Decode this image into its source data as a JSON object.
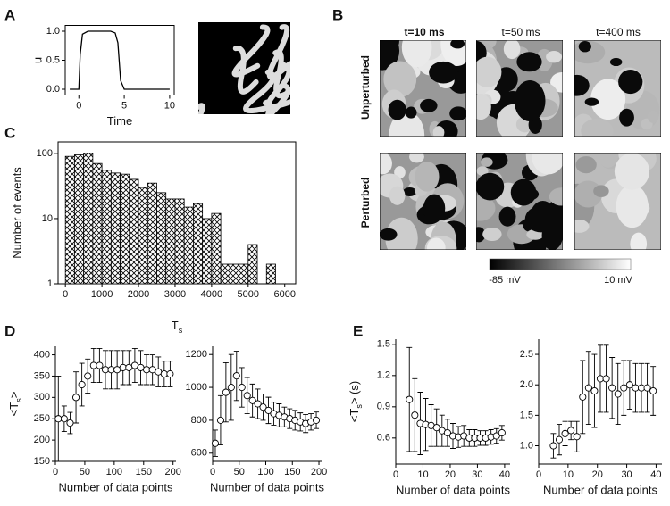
{
  "panels": [
    "A",
    "B",
    "C",
    "D",
    "E"
  ],
  "images": {
    "times": [
      "t=10 ms",
      "t=50 ms",
      "t=400 ms"
    ],
    "rows": [
      "Unperturbed",
      "Perturbed"
    ],
    "colorbar": [
      "-85 mV",
      "10 mV"
    ]
  },
  "chart_data": [
    {
      "type": "line",
      "xlabel": "Time",
      "ylabel": "u",
      "x": [
        -1,
        0,
        0.15,
        0.4,
        1,
        3.5,
        4,
        4.3,
        4.6,
        5,
        10
      ],
      "values": [
        0,
        0,
        0.6,
        0.95,
        1,
        1,
        0.97,
        0.8,
        0.15,
        0,
        0
      ],
      "color": "#000000",
      "xlim": [
        -1.5,
        10.5
      ],
      "ylim": [
        -0.1,
        1.1
      ],
      "xticks": [
        0,
        5,
        10
      ],
      "yticks": [
        {
          "value": 0,
          "label": "0.0"
        },
        {
          "value": 0.5,
          "label": "0.5"
        },
        {
          "value": 1,
          "label": "1.0"
        }
      ]
    },
    {
      "type": "histogram",
      "xlabel": [
        "T",
        "s"
      ],
      "ylabel": "Number of events",
      "log_y": true,
      "bins": [
        0,
        250,
        500,
        750,
        1000,
        1250,
        1500,
        1750,
        2000,
        2250,
        2500,
        2750,
        3000,
        3250,
        3500,
        3750,
        4000,
        4250,
        4500,
        4750,
        5000,
        5250,
        5500,
        5750
      ],
      "values": [
        90,
        95,
        100,
        70,
        55,
        50,
        48,
        40,
        30,
        35,
        25,
        20,
        20,
        15,
        17,
        10,
        12,
        2,
        2,
        2,
        4,
        0,
        2
      ],
      "color": "#000000",
      "xlim": [
        -200,
        6300
      ],
      "ylim": [
        1,
        150
      ],
      "xticks": [
        0,
        1000,
        2000,
        3000,
        4000,
        5000,
        6000
      ],
      "yticks": [
        1,
        10,
        100
      ]
    },
    {
      "type": "errorbar",
      "xlabel": "Number of data points",
      "ylabel": [
        "<T",
        "s",
        ">"
      ],
      "x": [
        5,
        15,
        25,
        35,
        45,
        55,
        65,
        75,
        85,
        95,
        105,
        115,
        125,
        135,
        145,
        155,
        165,
        175,
        185,
        195
      ],
      "values": [
        250,
        250,
        240,
        300,
        330,
        350,
        375,
        375,
        365,
        365,
        365,
        370,
        370,
        375,
        370,
        365,
        365,
        360,
        355,
        355
      ],
      "errors": [
        100,
        30,
        25,
        60,
        50,
        40,
        40,
        40,
        45,
        45,
        45,
        40,
        40,
        40,
        40,
        35,
        35,
        35,
        30,
        30
      ],
      "color": "#000000",
      "xlim": [
        0,
        205
      ],
      "ylim": [
        150,
        420
      ],
      "xticks": [
        0,
        50,
        100,
        150,
        200
      ],
      "yticks": [
        150,
        200,
        250,
        300,
        350,
        400
      ]
    },
    {
      "type": "errorbar",
      "xlabel": "Number of data points",
      "x": [
        5,
        15,
        25,
        35,
        45,
        55,
        65,
        75,
        85,
        95,
        105,
        115,
        125,
        135,
        145,
        155,
        165,
        175,
        185,
        195
      ],
      "values": [
        660,
        800,
        970,
        1000,
        1070,
        1000,
        950,
        920,
        900,
        880,
        860,
        840,
        830,
        820,
        810,
        800,
        790,
        780,
        790,
        800
      ],
      "errors": [
        80,
        150,
        180,
        200,
        150,
        120,
        110,
        100,
        90,
        80,
        80,
        70,
        70,
        60,
        60,
        60,
        55,
        55,
        50,
        50
      ],
      "color": "#000000",
      "xlim": [
        0,
        205
      ],
      "ylim": [
        550,
        1250
      ],
      "xticks": [
        0,
        50,
        100,
        150,
        200
      ],
      "yticks": [
        600,
        800,
        1000,
        1200
      ]
    },
    {
      "type": "errorbar",
      "xlabel": "Number of data points",
      "ylabel": [
        "<T",
        "s",
        "> (s)"
      ],
      "x": [
        5,
        7,
        9,
        11,
        13,
        15,
        17,
        19,
        21,
        23,
        25,
        27,
        29,
        31,
        33,
        35,
        37,
        39
      ],
      "values": [
        0.97,
        0.82,
        0.74,
        0.73,
        0.72,
        0.7,
        0.67,
        0.65,
        0.62,
        0.61,
        0.62,
        0.6,
        0.6,
        0.6,
        0.6,
        0.61,
        0.62,
        0.65
      ],
      "errors": [
        0.5,
        0.35,
        0.3,
        0.25,
        0.2,
        0.18,
        0.15,
        0.13,
        0.12,
        0.1,
        0.1,
        0.08,
        0.08,
        0.07,
        0.07,
        0.07,
        0.07,
        0.07
      ],
      "color": "#000000",
      "xlim": [
        0,
        42
      ],
      "ylim": [
        0.35,
        1.55
      ],
      "xticks": [
        0,
        10,
        20,
        30,
        40
      ],
      "yticks": [
        0.6,
        0.9,
        1.2,
        1.5
      ]
    },
    {
      "type": "errorbar",
      "xlabel": "Number of data points",
      "x": [
        5,
        7,
        9,
        11,
        13,
        15,
        17,
        19,
        21,
        23,
        25,
        27,
        29,
        31,
        33,
        35,
        37,
        39
      ],
      "values": [
        1.0,
        1.1,
        1.2,
        1.25,
        1.15,
        1.8,
        1.95,
        1.9,
        2.1,
        2.1,
        1.95,
        1.85,
        1.95,
        2.0,
        1.95,
        1.95,
        1.95,
        1.9
      ],
      "errors": [
        0.2,
        0.25,
        0.2,
        0.15,
        0.25,
        0.6,
        0.6,
        0.6,
        0.55,
        0.55,
        0.5,
        0.5,
        0.45,
        0.4,
        0.4,
        0.4,
        0.4,
        0.4
      ],
      "color": "#000000",
      "xlim": [
        0,
        42
      ],
      "ylim": [
        0.7,
        2.75
      ],
      "xticks": [
        0,
        10,
        20,
        30,
        40
      ],
      "yticks": [
        {
          "value": 1,
          "label": "1.0"
        },
        {
          "value": 1.5,
          "label": "1.5"
        },
        {
          "value": 2,
          "label": "2.0"
        },
        {
          "value": 2.5,
          "label": "2.5"
        }
      ]
    }
  ]
}
